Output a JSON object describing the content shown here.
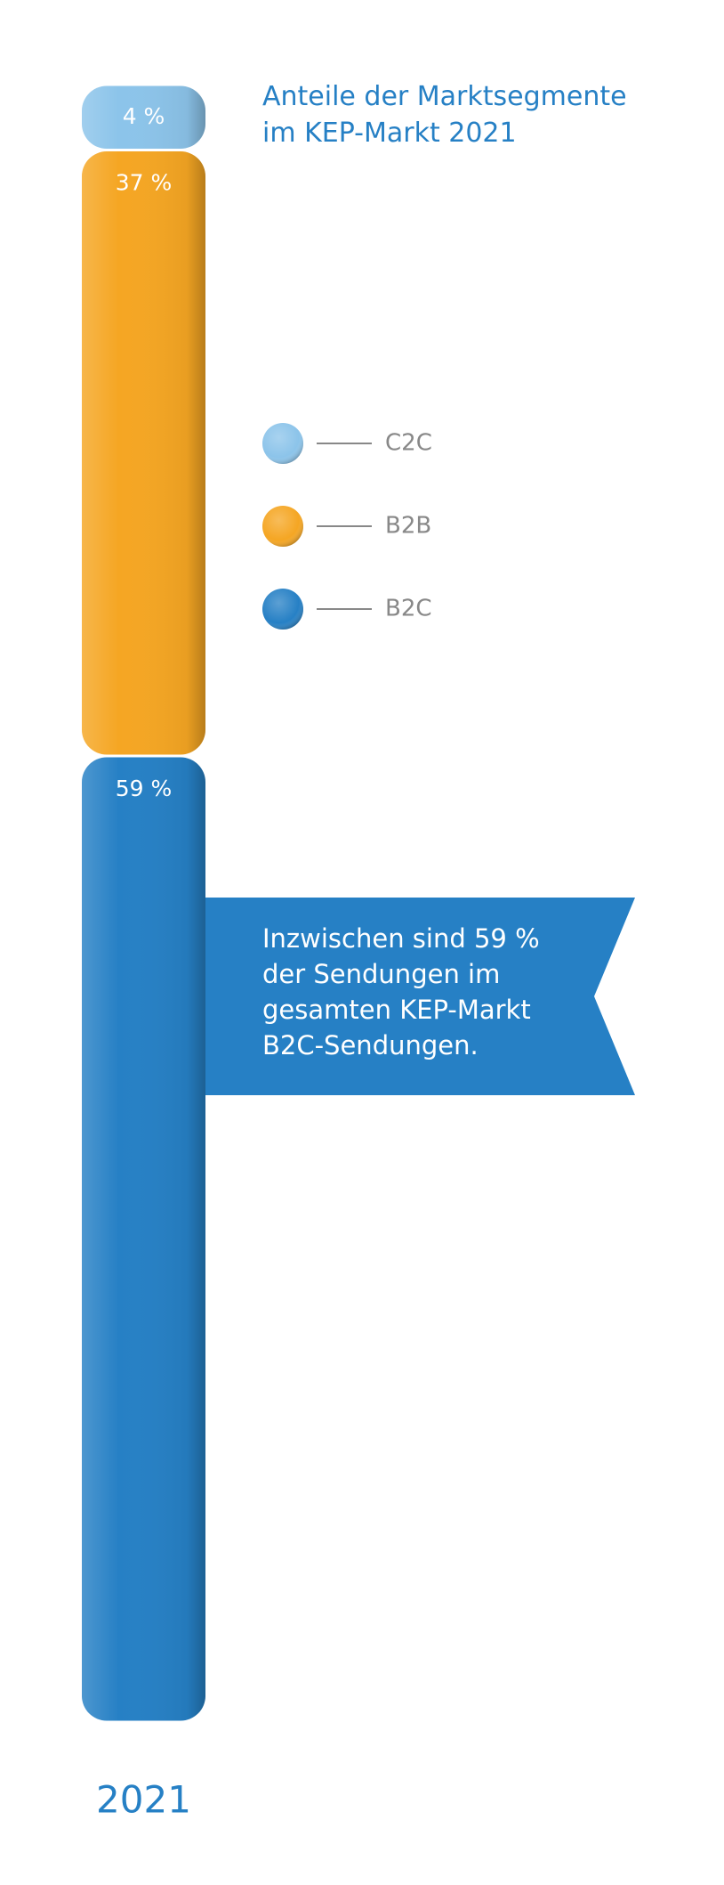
{
  "chart_data": {
    "type": "stacked-bar",
    "title": "Anteile der Marktsegmente im KEP-Markt 2021",
    "categories": [
      "2021"
    ],
    "series": [
      {
        "name": "C2C",
        "color": "#8cc4ea",
        "values": [
          4
        ],
        "value_labels": [
          "4 %"
        ]
      },
      {
        "name": "B2B",
        "color": "#f5a623",
        "values": [
          37
        ],
        "value_labels": [
          "37 %"
        ]
      },
      {
        "name": "B2C",
        "color": "#2680c5",
        "values": [
          59
        ],
        "value_labels": [
          "59 %"
        ]
      }
    ],
    "annotation": "Inzwischen sind 59 % der Sendungen im gesamten KEP-Markt B2C-Sendungen.",
    "annotation_color": "#2680c5",
    "legend": true
  }
}
